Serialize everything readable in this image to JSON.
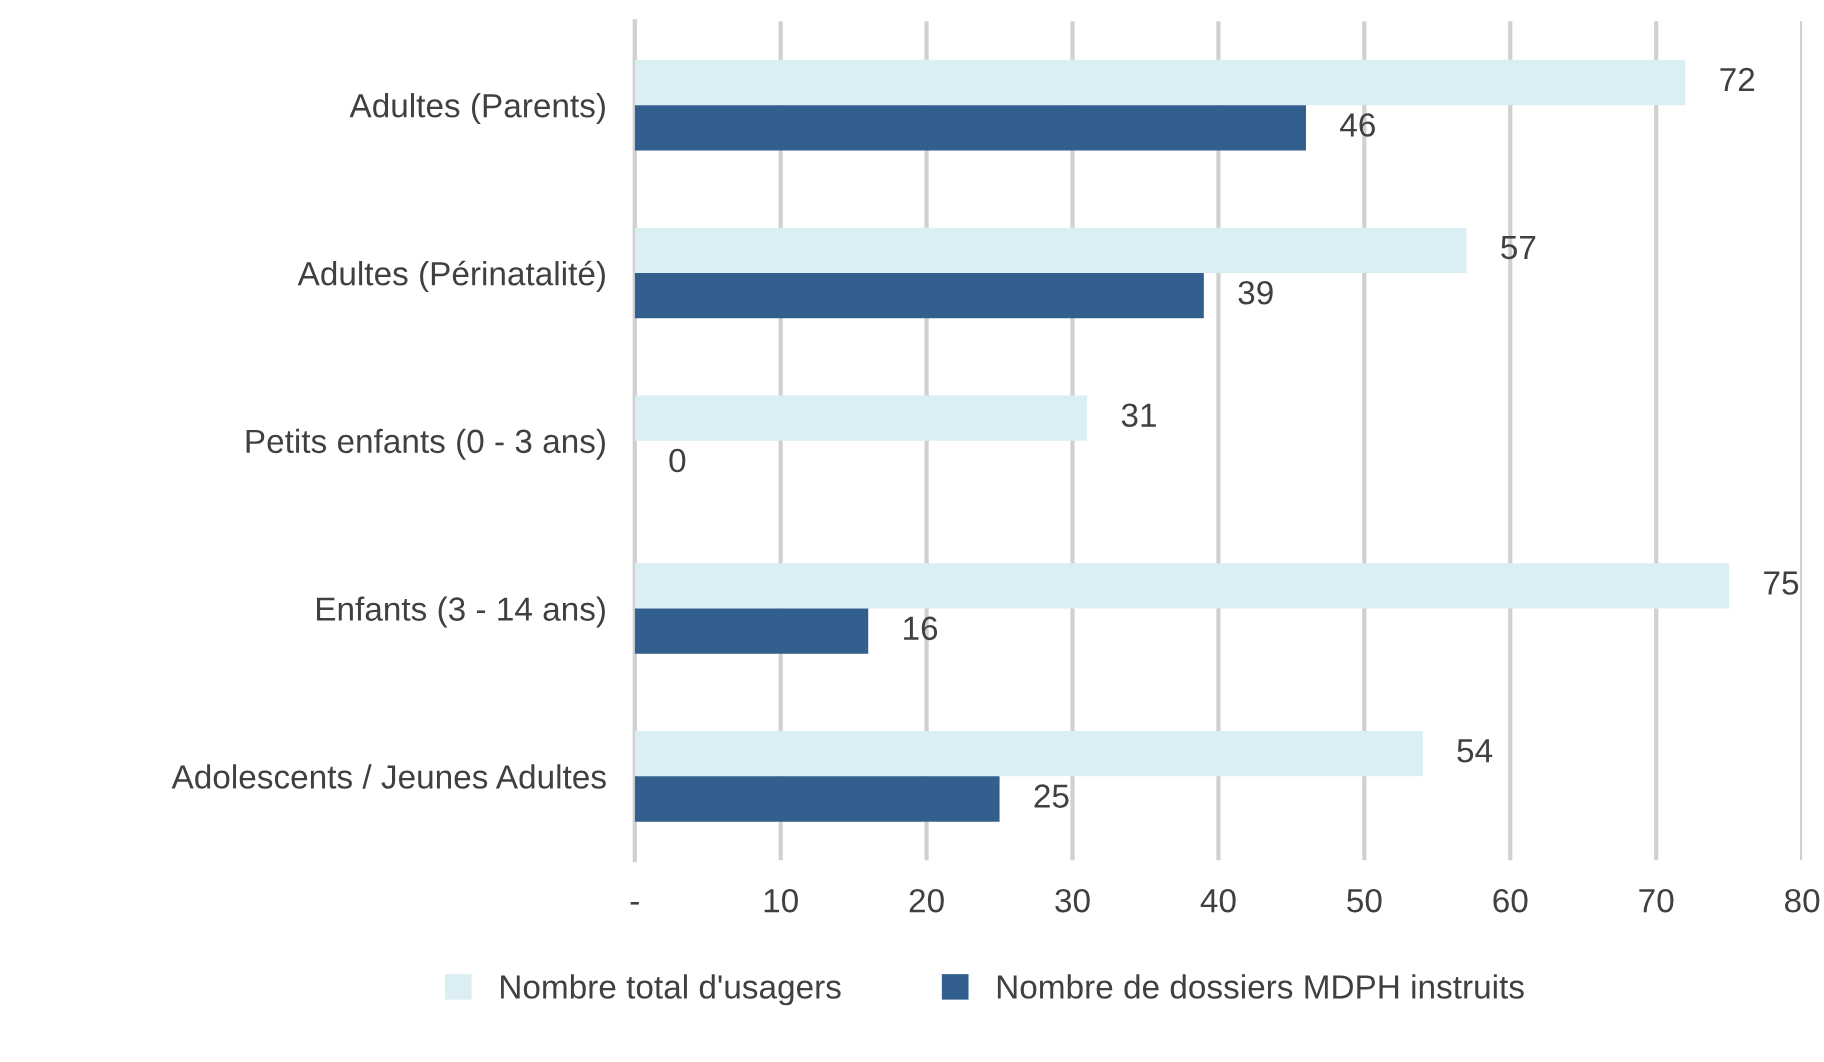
{
  "chart_data": {
    "type": "bar",
    "orientation": "horizontal",
    "categories": [
      "Adultes (Parents)",
      "Adultes (Périnatalité)",
      "Petits enfants (0 - 3 ans)",
      "Enfants (3 - 14 ans)",
      "Adolescents / Jeunes Adultes"
    ],
    "series": [
      {
        "name": "Nombre total d'usagers",
        "color": "#dbeef4",
        "values": [
          72,
          57,
          31,
          75,
          54
        ]
      },
      {
        "name": "Nombre de dossiers MDPH instruits",
        "color": "#325f8e",
        "values": [
          46,
          39,
          0,
          16,
          25
        ]
      }
    ],
    "xlim": [
      0,
      80
    ],
    "xticks": [
      {
        "value": 0,
        "label": "-"
      },
      10,
      20,
      30,
      40,
      50,
      60,
      70,
      80
    ],
    "grid": "x",
    "legend": "bottom",
    "data_labels": true
  }
}
